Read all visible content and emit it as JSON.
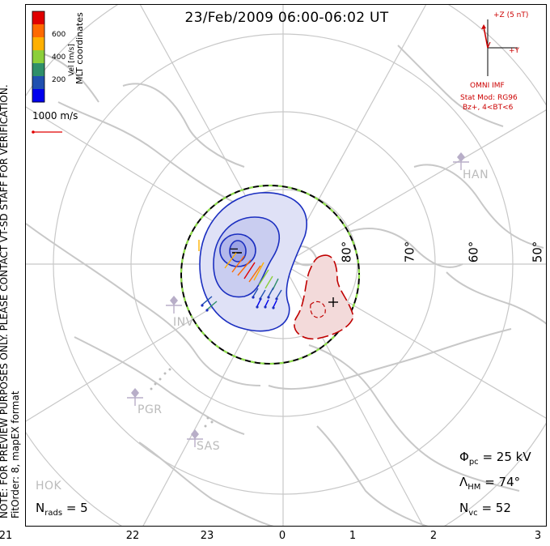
{
  "title": "23/Feb/2009 06:00-06:02 UT",
  "note_line1": "NOTE: FOR PREVIEW PURPOSES ONLY. PLEASE CONTACT VT-SD STAFF FOR VERIFICATION.",
  "note_line2": "FitOrder: 8, mapEX format",
  "colorbar": {
    "title": "Vel [m/s]",
    "label": "MLT coordinates",
    "ticks": [
      "600",
      "400",
      "200"
    ],
    "colors": [
      "#e00000",
      "#ff6a00",
      "#ffb000",
      "#8ccf3a",
      "#2f8f6a",
      "#2050b0",
      "#0000ee"
    ]
  },
  "vector_scale": "1000 m/s",
  "imf": {
    "axis_z": "+Z (5 nT)",
    "axis_y": "+Y",
    "label": "OMNI IMF",
    "stat_mod": "Stat Mod: RG96",
    "condition": "Bz+, 4<BT<6"
  },
  "latitudes": [
    "80°",
    "70°",
    "60°",
    "50°"
  ],
  "stations": [
    "HAN",
    "INV",
    "PGR",
    "SAS",
    "HOK"
  ],
  "stats": {
    "phi_symbol": "Φ",
    "phi_sub": "pc",
    "phi_value": "= 25 kV",
    "lambda_symbol": "Λ",
    "lambda_sub": "HM",
    "lambda_value": "= 74°",
    "nvc_symbol": "N",
    "nvc_sub": "vc",
    "nvc_value": "= 52",
    "nrads_symbol": "N",
    "nrads_sub": "rads",
    "nrads_value": "= 5"
  },
  "contour_signs": {
    "minus": "−",
    "plus": "+"
  },
  "mlt_ticks": [
    "21",
    "22",
    "23",
    "0",
    "1",
    "2",
    "3"
  ],
  "colors": {
    "negative_cell": "#1a2ec0",
    "positive_cell": "#c00000",
    "coastline": "#c8c8c8",
    "grid": "#c8c8c8",
    "hm_boundary_dash": "#8fe04a"
  }
}
